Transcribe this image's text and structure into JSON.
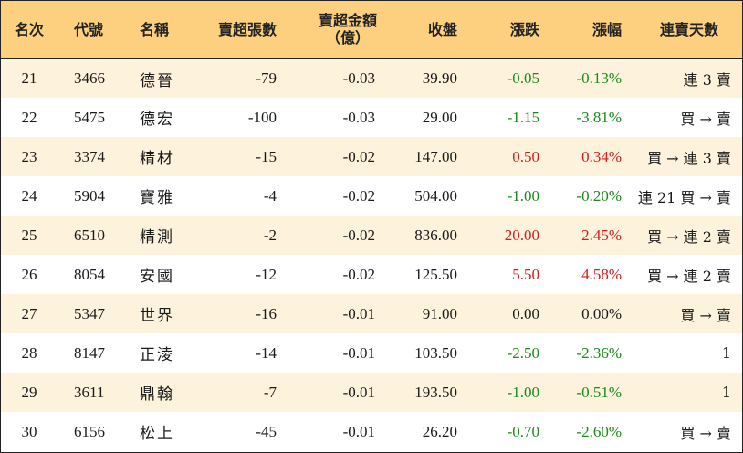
{
  "headers": {
    "rank": "名次",
    "code": "代號",
    "name": "名稱",
    "sell_lots": "賣超張數",
    "sell_amount": "賣超金額\n（億）",
    "close": "收盤",
    "change": "漲跌",
    "pct": "漲幅",
    "days": "連賣天數"
  },
  "rows": [
    {
      "rank": "21",
      "code": "3466",
      "name": "德晉",
      "lots": "-79",
      "amount": "-0.03",
      "close": "39.90",
      "change": "-0.05",
      "pct": "-0.13%",
      "days": "連 3 賣",
      "trend": "down"
    },
    {
      "rank": "22",
      "code": "5475",
      "name": "德宏",
      "lots": "-100",
      "amount": "-0.03",
      "close": "29.00",
      "change": "-1.15",
      "pct": "-3.81%",
      "days": "買 → 賣",
      "trend": "down"
    },
    {
      "rank": "23",
      "code": "3374",
      "name": "精材",
      "lots": "-15",
      "amount": "-0.02",
      "close": "147.00",
      "change": "0.50",
      "pct": "0.34%",
      "days": "買 → 連 3 賣",
      "trend": "up"
    },
    {
      "rank": "24",
      "code": "5904",
      "name": "寶雅",
      "lots": "-4",
      "amount": "-0.02",
      "close": "504.00",
      "change": "-1.00",
      "pct": "-0.20%",
      "days": "連 21 買 → 賣",
      "trend": "down"
    },
    {
      "rank": "25",
      "code": "6510",
      "name": "精測",
      "lots": "-2",
      "amount": "-0.02",
      "close": "836.00",
      "change": "20.00",
      "pct": "2.45%",
      "days": "買 → 連 2 賣",
      "trend": "up"
    },
    {
      "rank": "26",
      "code": "8054",
      "name": "安國",
      "lots": "-12",
      "amount": "-0.02",
      "close": "125.50",
      "change": "5.50",
      "pct": "4.58%",
      "days": "買 → 連 2 賣",
      "trend": "up"
    },
    {
      "rank": "27",
      "code": "5347",
      "name": "世界",
      "lots": "-16",
      "amount": "-0.01",
      "close": "91.00",
      "change": "0.00",
      "pct": "0.00%",
      "days": "買 → 賣",
      "trend": "flat"
    },
    {
      "rank": "28",
      "code": "8147",
      "name": "正淩",
      "lots": "-14",
      "amount": "-0.01",
      "close": "103.50",
      "change": "-2.50",
      "pct": "-2.36%",
      "days": "1",
      "trend": "down"
    },
    {
      "rank": "29",
      "code": "3611",
      "name": "鼎翰",
      "lots": "-7",
      "amount": "-0.01",
      "close": "193.50",
      "change": "-1.00",
      "pct": "-0.51%",
      "days": "1",
      "trend": "down"
    },
    {
      "rank": "30",
      "code": "6156",
      "name": "松上",
      "lots": "-45",
      "amount": "-0.01",
      "close": "26.20",
      "change": "-0.70",
      "pct": "-2.60%",
      "days": "買 → 賣",
      "trend": "down"
    }
  ],
  "colors": {
    "header_bg": "#fcd07f",
    "odd_row_bg": "#fdf3dc",
    "up": "#d81b1b",
    "down": "#1a8a1a"
  }
}
